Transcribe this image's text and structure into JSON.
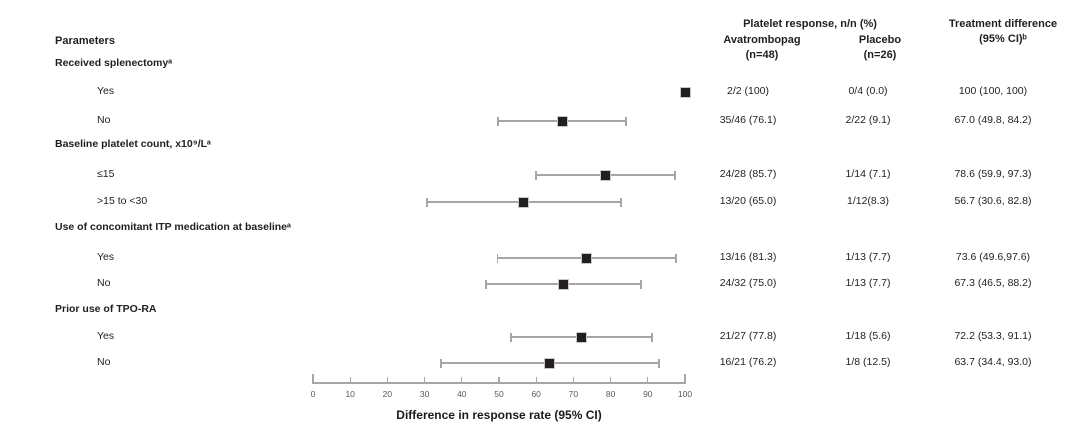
{
  "header": {
    "params": "Parameters",
    "group_title": "Platelet response, n/n (%)",
    "col_avatrombopag": "Avatrombopag",
    "col_avatrombopag_n": "(n=48)",
    "col_placebo": "Placebo",
    "col_placebo_n": "(n=26)",
    "col_difference_line1": "Treatment difference",
    "col_difference_line2": "(95% CI)ᵇ"
  },
  "axis": {
    "title": "Difference in response rate (95% CI)",
    "min": 0,
    "max": 100,
    "tick_step": 10,
    "ticks": [
      0,
      10,
      20,
      30,
      40,
      50,
      60,
      70,
      80,
      90,
      100
    ]
  },
  "colors": {
    "marker": "#231f20",
    "whisker": "#a6a6a6",
    "text": "#1f1f1f",
    "tick_text": "#595959"
  },
  "chart_data": {
    "type": "scatter",
    "variant": "forest-plot",
    "xlabel": "Difference in response rate (95% CI)",
    "xlim": [
      0,
      100
    ],
    "xticks": [
      0,
      10,
      20,
      30,
      40,
      50,
      60,
      70,
      80,
      90,
      100
    ],
    "grid": false,
    "legend": false,
    "sections": [
      {
        "label": "Received splenectomyᵃ",
        "rows": [
          {
            "label": "Yes",
            "avatrombopag": "2/2 (100)",
            "placebo": "0/4 (0.0)",
            "difference": "100 (100, 100)",
            "estimate": 100.0,
            "ci_low": 100.0,
            "ci_high": 100.0
          },
          {
            "label": "No",
            "avatrombopag": "35/46 (76.1)",
            "placebo": "2/22 (9.1)",
            "difference": "67.0 (49.8, 84.2)",
            "estimate": 67.0,
            "ci_low": 49.8,
            "ci_high": 84.2
          }
        ]
      },
      {
        "label": "Baseline platelet count, x10⁹/Lᵃ",
        "rows": [
          {
            "label": "≤15",
            "avatrombopag": "24/28 (85.7)",
            "placebo": "1/14 (7.1)",
            "difference": "78.6 (59.9, 97.3)",
            "estimate": 78.6,
            "ci_low": 59.9,
            "ci_high": 97.3
          },
          {
            "label": ">15 to <30",
            "avatrombopag": "13/20 (65.0)",
            "placebo": "1/12(8.3)",
            "difference": "56.7 (30.6, 82.8)",
            "estimate": 56.7,
            "ci_low": 30.6,
            "ci_high": 82.8
          }
        ]
      },
      {
        "label": "Use of concomitant ITP medication at baselineᵃ",
        "rows": [
          {
            "label": "Yes",
            "avatrombopag": "13/16 (81.3)",
            "placebo": "1/13 (7.7)",
            "difference": "73.6 (49.6,97.6)",
            "estimate": 73.6,
            "ci_low": 49.6,
            "ci_high": 97.6
          },
          {
            "label": "No",
            "avatrombopag": "24/32 (75.0)",
            "placebo": "1/13 (7.7)",
            "difference": "67.3 (46.5, 88.2)",
            "estimate": 67.3,
            "ci_low": 46.5,
            "ci_high": 88.2
          }
        ]
      },
      {
        "label": "Prior use of TPO-RA",
        "rows": [
          {
            "label": "Yes",
            "avatrombopag": "21/27 (77.8)",
            "placebo": "1/18 (5.6)",
            "difference": "72.2 (53.3, 91.1)",
            "estimate": 72.2,
            "ci_low": 53.3,
            "ci_high": 91.1
          },
          {
            "label": "No",
            "avatrombopag": "16/21 (76.2)",
            "placebo": "1/8 (12.5)",
            "difference": "63.7 (34.4, 93.0)",
            "estimate": 63.7,
            "ci_low": 34.4,
            "ci_high": 93.0
          }
        ]
      }
    ]
  }
}
